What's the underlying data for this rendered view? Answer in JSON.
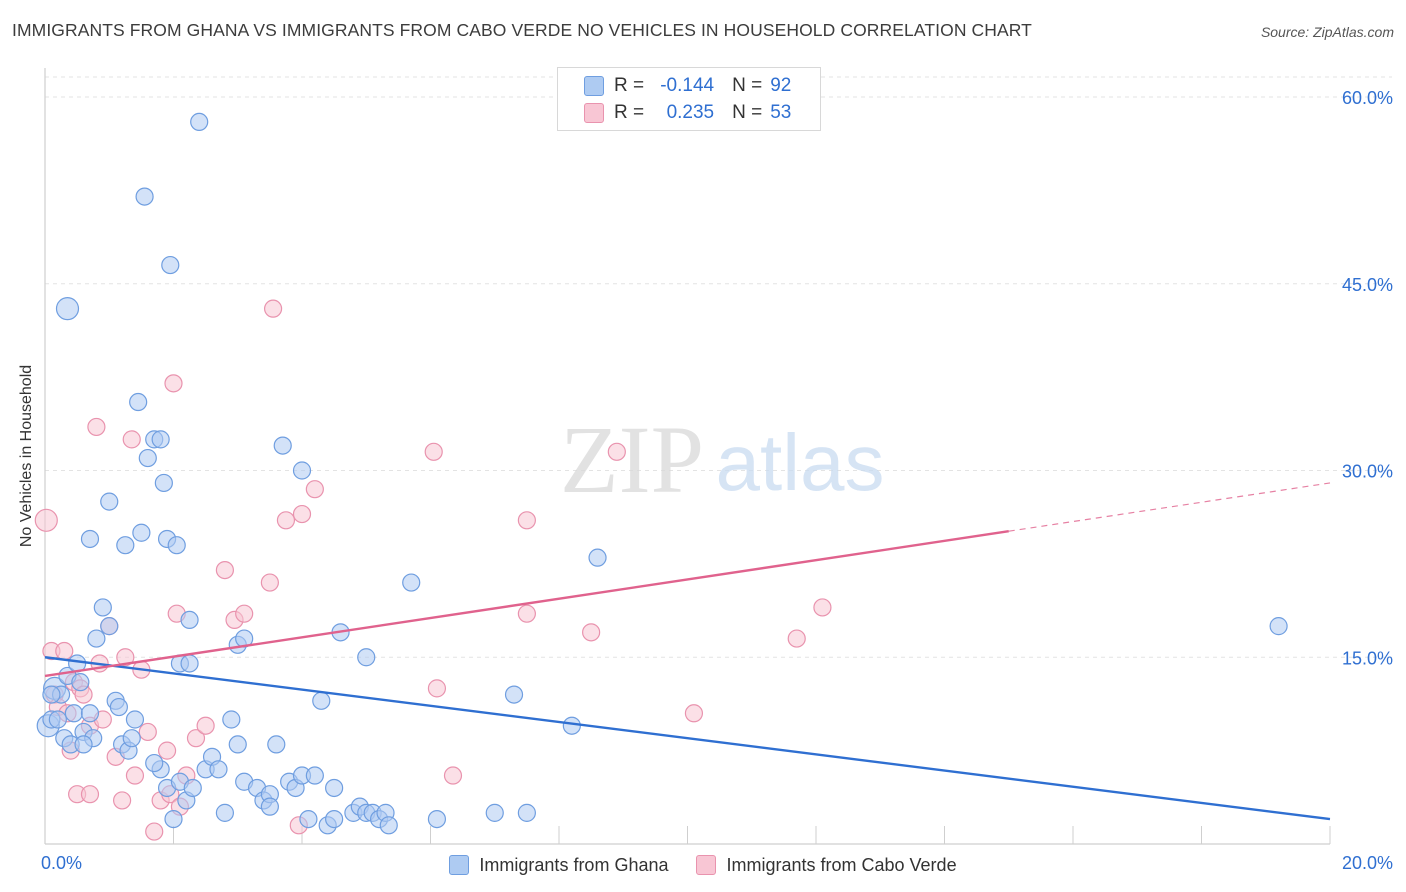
{
  "header": {
    "title": "IMMIGRANTS FROM GHANA VS IMMIGRANTS FROM CABO VERDE NO VEHICLES IN HOUSEHOLD CORRELATION CHART",
    "source": "Source: ZipAtlas.com"
  },
  "watermark": {
    "zip": "ZIP",
    "atlas": "atlas"
  },
  "legend": {
    "rows": [
      {
        "r_label": "R =",
        "r_value": "-0.144",
        "n_label": "N =",
        "n_value": "92",
        "color": "#aecbf2",
        "border": "#6f9ee0"
      },
      {
        "r_label": "R =",
        "r_value": "0.235",
        "n_label": "N =",
        "n_value": "53",
        "color": "#f8c6d4",
        "border": "#e993ae"
      }
    ]
  },
  "bottom_legend": {
    "ghana": "Immigrants from Ghana",
    "cabo": "Immigrants from Cabo Verde"
  },
  "colors": {
    "ghana_fill": "#aecbf2",
    "ghana_stroke": "#6f9ee0",
    "ghana_line": "#2f6fd1",
    "cabo_fill": "#f8c6d4",
    "cabo_stroke": "#e993ae",
    "cabo_line": "#e0628d",
    "tick_text": "#2f6fd1"
  },
  "chart_data": {
    "type": "scatter",
    "title": "IMMIGRANTS FROM GHANA VS IMMIGRANTS FROM CABO VERDE NO VEHICLES IN HOUSEHOLD CORRELATION CHART",
    "xlabel": "",
    "ylabel": "No Vehicles in Household",
    "xlim": [
      0,
      20
    ],
    "ylim": [
      0,
      60
    ],
    "x_ticks": [
      {
        "value": 0,
        "label": "0.0%"
      },
      {
        "value": 20,
        "label": "20.0%"
      }
    ],
    "y_ticks": [
      {
        "value": 15,
        "label": "15.0%"
      },
      {
        "value": 30,
        "label": "30.0%"
      },
      {
        "value": 45,
        "label": "45.0%"
      },
      {
        "value": 60,
        "label": "60.0%"
      }
    ],
    "grid": true,
    "series": [
      {
        "name": "Immigrants from Ghana",
        "trend": {
          "x0": 0,
          "y0": 15.0,
          "x1": 20,
          "y1": 2.0,
          "solid_to": 20
        },
        "points": [
          [
            0.05,
            9.5
          ],
          [
            0.1,
            10.0
          ],
          [
            0.15,
            12.5
          ],
          [
            0.2,
            10.0
          ],
          [
            0.25,
            12.0
          ],
          [
            0.3,
            8.5
          ],
          [
            0.35,
            13.5
          ],
          [
            0.4,
            8.0
          ],
          [
            0.45,
            10.5
          ],
          [
            0.5,
            14.5
          ],
          [
            0.55,
            13.0
          ],
          [
            0.6,
            9.0
          ],
          [
            0.7,
            10.5
          ],
          [
            0.75,
            8.5
          ],
          [
            0.8,
            16.5
          ],
          [
            0.9,
            19.0
          ],
          [
            1.0,
            17.5
          ],
          [
            1.1,
            11.5
          ],
          [
            1.15,
            11.0
          ],
          [
            1.2,
            8.0
          ],
          [
            1.3,
            7.5
          ],
          [
            1.35,
            8.5
          ],
          [
            1.4,
            10.0
          ],
          [
            1.0,
            27.5
          ],
          [
            0.7,
            24.5
          ],
          [
            1.25,
            24.0
          ],
          [
            1.45,
            35.5
          ],
          [
            1.5,
            25.0
          ],
          [
            1.55,
            52.0
          ],
          [
            1.6,
            31.0
          ],
          [
            1.7,
            32.5
          ],
          [
            1.8,
            32.5
          ],
          [
            1.85,
            29.0
          ],
          [
            1.9,
            24.5
          ],
          [
            2.05,
            24.0
          ],
          [
            1.8,
            6.0
          ],
          [
            1.9,
            4.5
          ],
          [
            2.0,
            2.0
          ],
          [
            2.1,
            5.0
          ],
          [
            2.2,
            3.5
          ],
          [
            2.3,
            4.5
          ],
          [
            2.1,
            14.5
          ],
          [
            2.25,
            14.5
          ],
          [
            2.25,
            18.0
          ],
          [
            2.4,
            58.0
          ],
          [
            2.5,
            6.0
          ],
          [
            2.6,
            7.0
          ],
          [
            2.7,
            6.0
          ],
          [
            2.8,
            2.5
          ],
          [
            2.9,
            10.0
          ],
          [
            3.0,
            8.0
          ],
          [
            3.1,
            5.0
          ],
          [
            3.0,
            16.0
          ],
          [
            3.1,
            16.5
          ],
          [
            3.3,
            4.5
          ],
          [
            3.4,
            3.5
          ],
          [
            3.5,
            4.0
          ],
          [
            3.5,
            3.0
          ],
          [
            3.6,
            8.0
          ],
          [
            3.7,
            32.0
          ],
          [
            3.8,
            5.0
          ],
          [
            3.9,
            4.5
          ],
          [
            4.0,
            5.5
          ],
          [
            4.0,
            30.0
          ],
          [
            4.1,
            2.0
          ],
          [
            4.2,
            5.5
          ],
          [
            4.3,
            11.5
          ],
          [
            4.4,
            1.5
          ],
          [
            4.5,
            2.0
          ],
          [
            4.5,
            4.5
          ],
          [
            4.6,
            17.0
          ],
          [
            4.8,
            2.5
          ],
          [
            4.9,
            3.0
          ],
          [
            5.0,
            15.0
          ],
          [
            5.0,
            2.5
          ],
          [
            5.1,
            2.5
          ],
          [
            5.2,
            2.0
          ],
          [
            5.3,
            2.5
          ],
          [
            5.35,
            1.5
          ],
          [
            0.35,
            43.0
          ],
          [
            1.95,
            46.5
          ],
          [
            5.7,
            21.0
          ],
          [
            6.1,
            2.0
          ],
          [
            7.0,
            2.5
          ],
          [
            7.3,
            12.0
          ],
          [
            7.5,
            2.5
          ],
          [
            8.2,
            9.5
          ],
          [
            8.6,
            23.0
          ],
          [
            19.2,
            17.5
          ],
          [
            0.1,
            12.0
          ],
          [
            0.6,
            8.0
          ],
          [
            1.7,
            6.5
          ]
        ],
        "big_points": [
          [
            0.05,
            9.5
          ],
          [
            0.15,
            12.5
          ],
          [
            0.35,
            43.0
          ]
        ]
      },
      {
        "name": "Immigrants from Cabo Verde",
        "trend": {
          "x0": 0,
          "y0": 13.5,
          "x1": 20,
          "y1": 29.0,
          "solid_to": 15
        },
        "points": [
          [
            0.02,
            26.0
          ],
          [
            0.1,
            15.5
          ],
          [
            0.15,
            12.0
          ],
          [
            0.2,
            11.0
          ],
          [
            0.3,
            15.5
          ],
          [
            0.35,
            10.5
          ],
          [
            0.4,
            7.5
          ],
          [
            0.45,
            13.0
          ],
          [
            0.5,
            4.0
          ],
          [
            0.55,
            12.5
          ],
          [
            0.6,
            12.0
          ],
          [
            0.7,
            4.0
          ],
          [
            0.7,
            9.5
          ],
          [
            0.8,
            33.5
          ],
          [
            0.85,
            14.5
          ],
          [
            0.9,
            10.0
          ],
          [
            1.0,
            17.5
          ],
          [
            1.1,
            7.0
          ],
          [
            1.2,
            3.5
          ],
          [
            1.25,
            15.0
          ],
          [
            1.35,
            32.5
          ],
          [
            1.4,
            5.5
          ],
          [
            1.5,
            14.0
          ],
          [
            1.6,
            9.0
          ],
          [
            1.7,
            1.0
          ],
          [
            1.8,
            3.5
          ],
          [
            1.9,
            7.5
          ],
          [
            1.95,
            4.0
          ],
          [
            2.0,
            37.0
          ],
          [
            2.05,
            18.5
          ],
          [
            2.1,
            3.0
          ],
          [
            2.2,
            5.5
          ],
          [
            2.35,
            8.5
          ],
          [
            2.5,
            9.5
          ],
          [
            2.8,
            22.0
          ],
          [
            2.95,
            18.0
          ],
          [
            3.1,
            18.5
          ],
          [
            3.5,
            21.0
          ],
          [
            3.55,
            43.0
          ],
          [
            3.75,
            26.0
          ],
          [
            3.95,
            1.5
          ],
          [
            4.0,
            26.5
          ],
          [
            4.2,
            28.5
          ],
          [
            6.05,
            31.5
          ],
          [
            6.1,
            12.5
          ],
          [
            6.35,
            5.5
          ],
          [
            7.5,
            26.0
          ],
          [
            7.5,
            18.5
          ],
          [
            8.5,
            17.0
          ],
          [
            8.9,
            31.5
          ],
          [
            10.1,
            10.5
          ],
          [
            11.7,
            16.5
          ],
          [
            12.1,
            19.0
          ]
        ],
        "big_points": [
          [
            0.02,
            26.0
          ]
        ]
      }
    ]
  }
}
